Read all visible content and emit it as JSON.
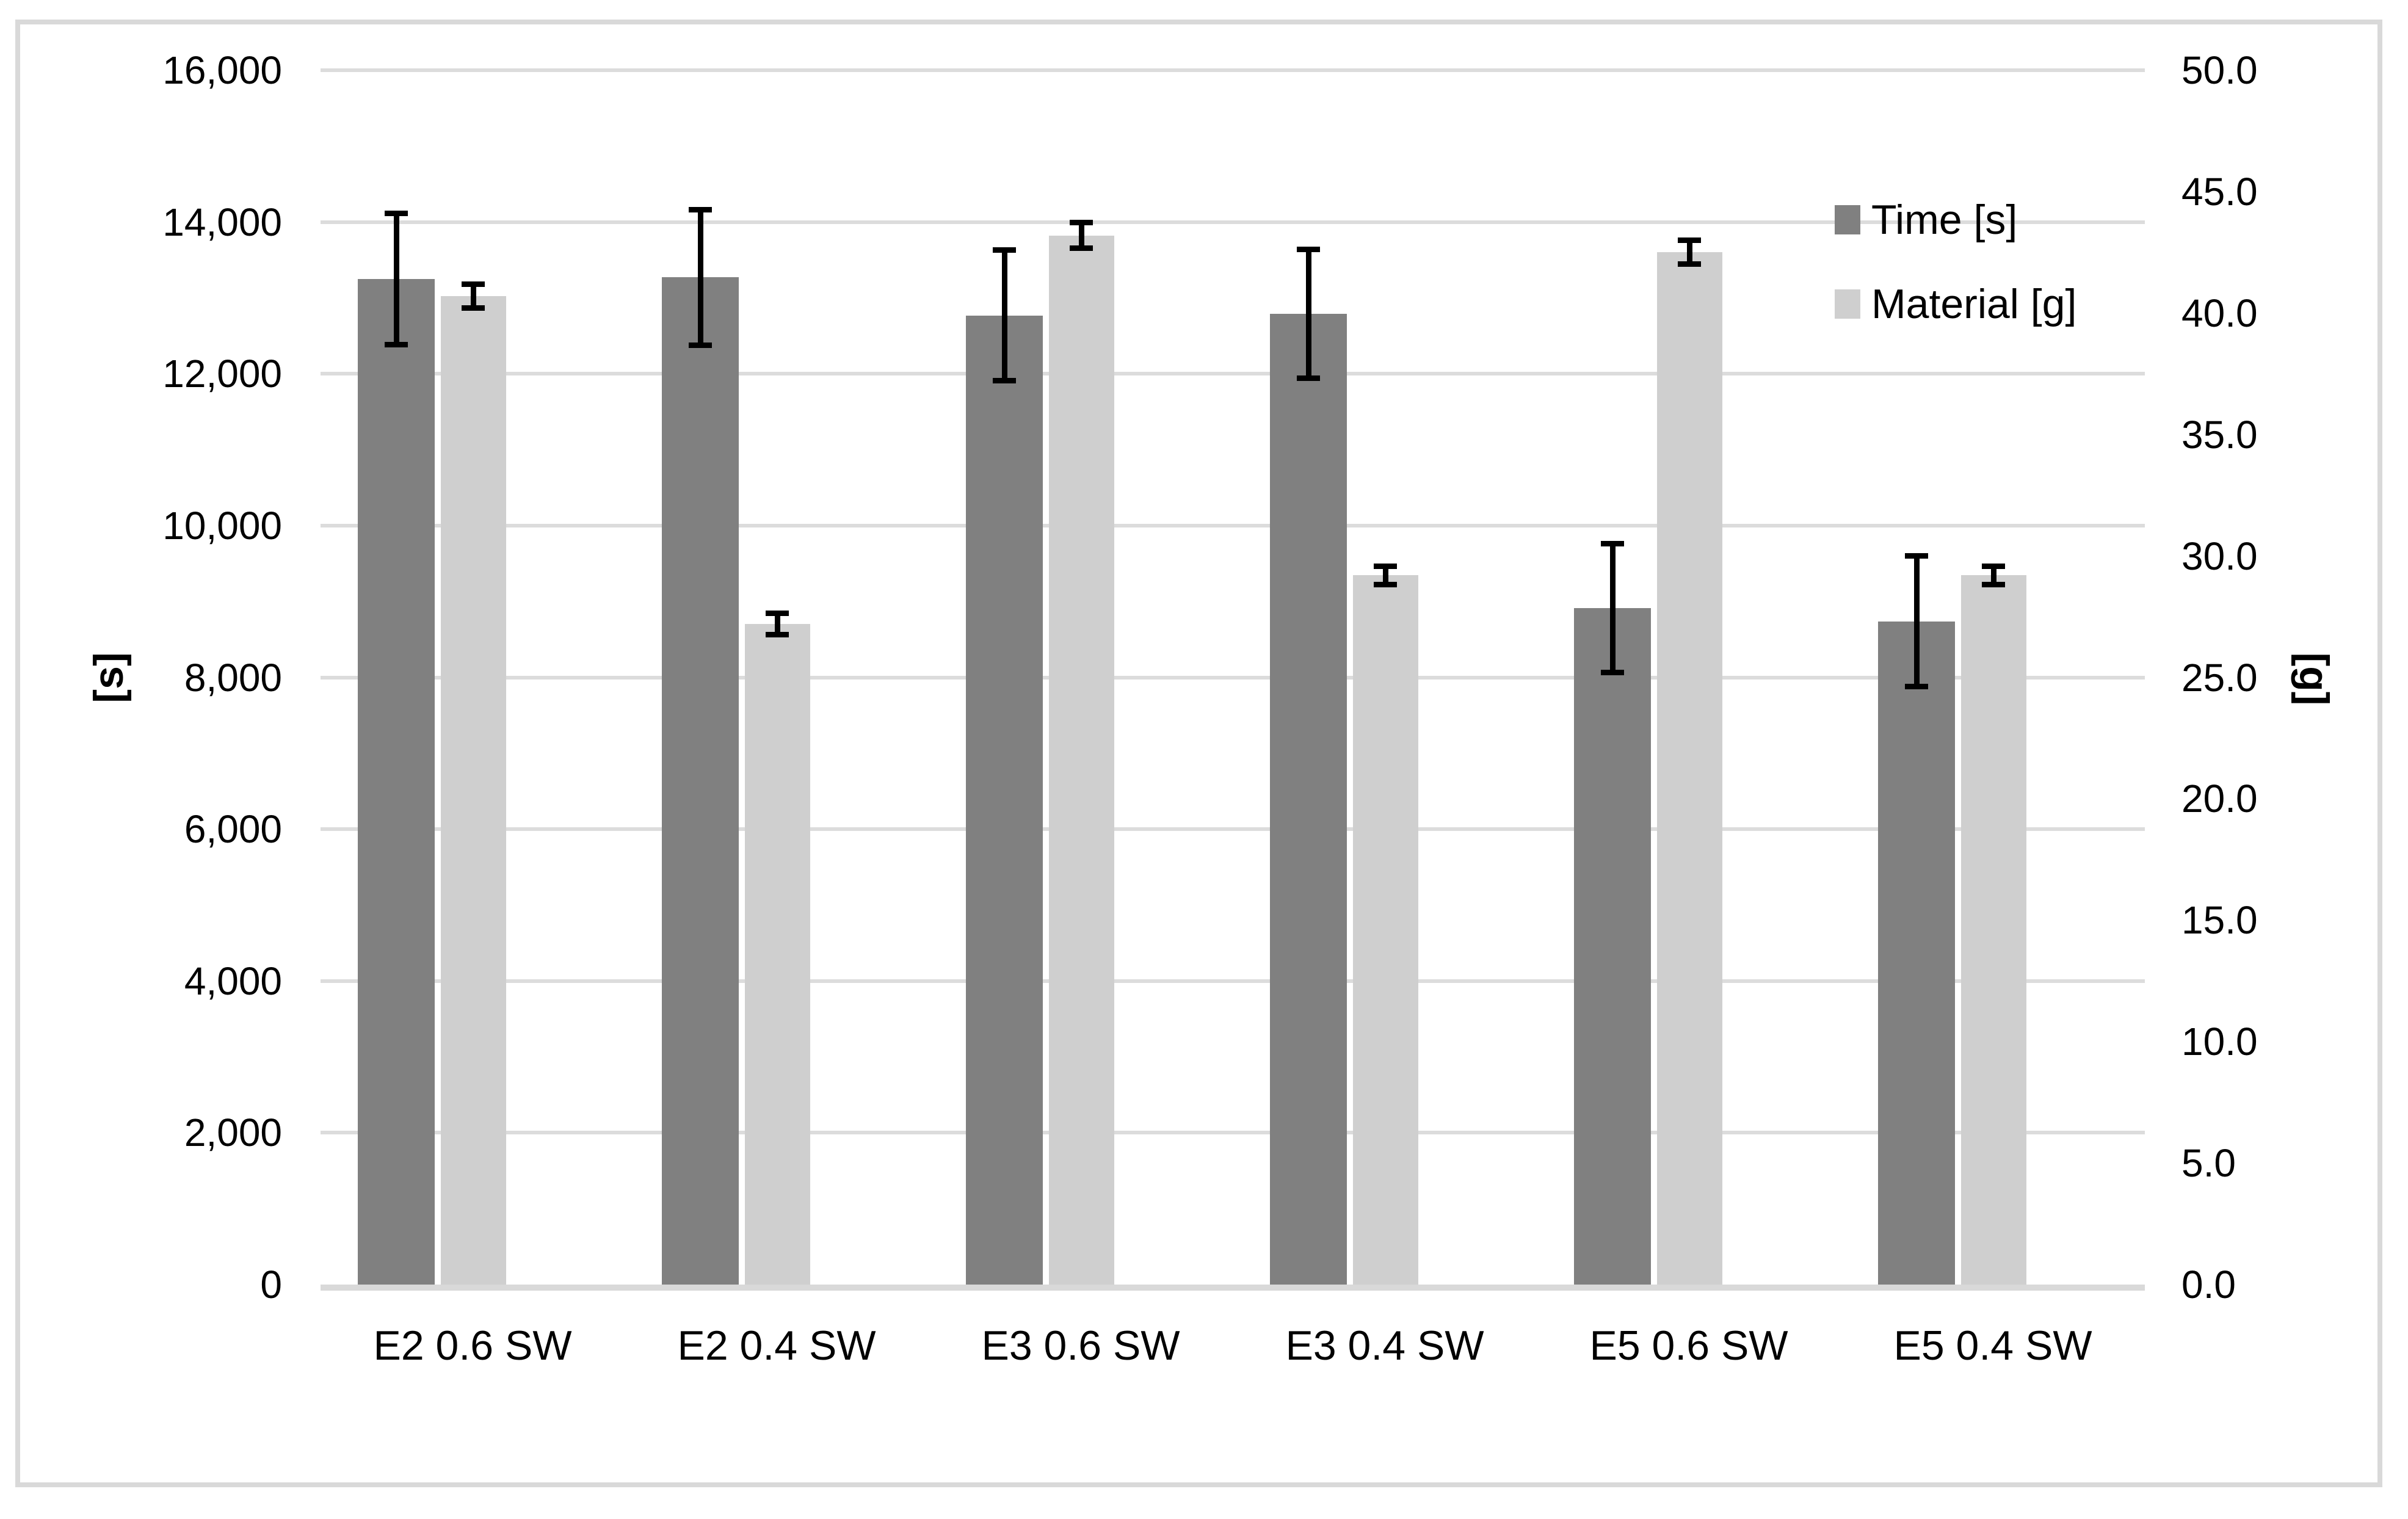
{
  "chart_data": {
    "type": "bar",
    "title": "",
    "categories": [
      "E2 0.6 SW",
      "E2 0.4 SW",
      "E3 0.6 SW",
      "E3 0.4 SW",
      "E5 0.6 SW",
      "E5 0.4 SW"
    ],
    "series": [
      {
        "name": "Time [s]",
        "axis": "left",
        "color": "#808080",
        "values": [
          13250,
          13270,
          12770,
          12790,
          8910,
          8740
        ],
        "error_bars": [
          900,
          930,
          900,
          885,
          885,
          900
        ]
      },
      {
        "name": "Material [g]",
        "axis": "right",
        "color": "#cfcfcf",
        "values": [
          40.7,
          27.2,
          43.2,
          29.2,
          42.5,
          29.2
        ],
        "error_bars": [
          0.6,
          0.55,
          0.65,
          0.5,
          0.6,
          0.5
        ]
      }
    ],
    "left_axis": {
      "title": "[s]",
      "min": 0,
      "max": 16000,
      "step": 2000,
      "tick_labels": [
        "0",
        "2,000",
        "4,000",
        "6,000",
        "8,000",
        "10,000",
        "12,000",
        "14,000",
        "16,000"
      ]
    },
    "right_axis": {
      "title": "[g]",
      "min": 0,
      "max": 50,
      "step": 5,
      "tick_labels": [
        "0.0",
        "5.0",
        "10.0",
        "15.0",
        "20.0",
        "25.0",
        "30.0",
        "35.0",
        "40.0",
        "45.0",
        "50.0"
      ]
    },
    "legend_position": "right-inside",
    "grid": "horizontal",
    "colors": {
      "gridline": "#dcdcdc",
      "baseline": "#d9d9d9",
      "frame_border": "#d9d9d9",
      "error_bar": "#000000",
      "text": "#000000",
      "background": "#ffffff"
    }
  }
}
